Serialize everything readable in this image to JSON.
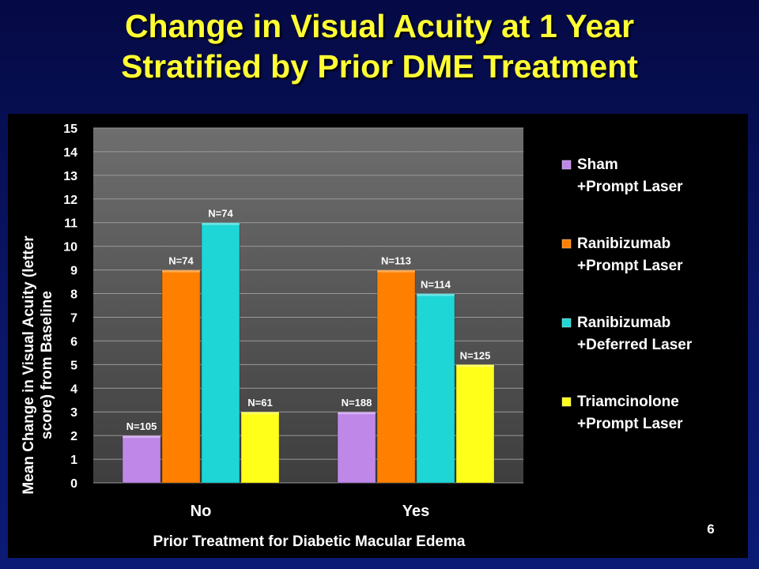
{
  "slide": {
    "title_line1": "Change in Visual Acuity at 1 Year",
    "title_line2": "Stratified by Prior DME Treatment",
    "number": "6"
  },
  "chart_data": {
    "type": "bar",
    "title": "Change in Visual Acuity at 1 Year Stratified by Prior DME Treatment",
    "ylabel_line1": "Mean Change in Visual Acuity (letter",
    "ylabel_line2": "score) from Baseline",
    "xlabel": "Prior Treatment for Diabetic Macular Edema",
    "categories": [
      "No",
      "Yes"
    ],
    "ylim": [
      0,
      15
    ],
    "yticks": [
      "0",
      "1",
      "2",
      "3",
      "4",
      "5",
      "6",
      "7",
      "8",
      "9",
      "10",
      "11",
      "12",
      "13",
      "14",
      "15"
    ],
    "grid": true,
    "legend_position": "right",
    "series": [
      {
        "name_line1": "Sham",
        "name_line2": "+Prompt Laser",
        "color": "#bf87e8",
        "values": [
          2,
          3
        ],
        "labels": [
          "N=105",
          "N=188"
        ]
      },
      {
        "name_line1": "Ranibizumab",
        "name_line2": "+Prompt Laser",
        "color": "#ff8000",
        "values": [
          9,
          9
        ],
        "labels": [
          "N=74",
          "N=113"
        ]
      },
      {
        "name_line1": "Ranibizumab",
        "name_line2": "+Deferred Laser",
        "color": "#1fd6d6",
        "values": [
          11,
          8
        ],
        "labels": [
          "N=74",
          "N=114"
        ]
      },
      {
        "name_line1": "Triamcinolone",
        "name_line2": "+Prompt Laser",
        "color": "#ffff1a",
        "values": [
          3,
          5
        ],
        "labels": [
          "N=61",
          "N=125"
        ]
      }
    ]
  }
}
